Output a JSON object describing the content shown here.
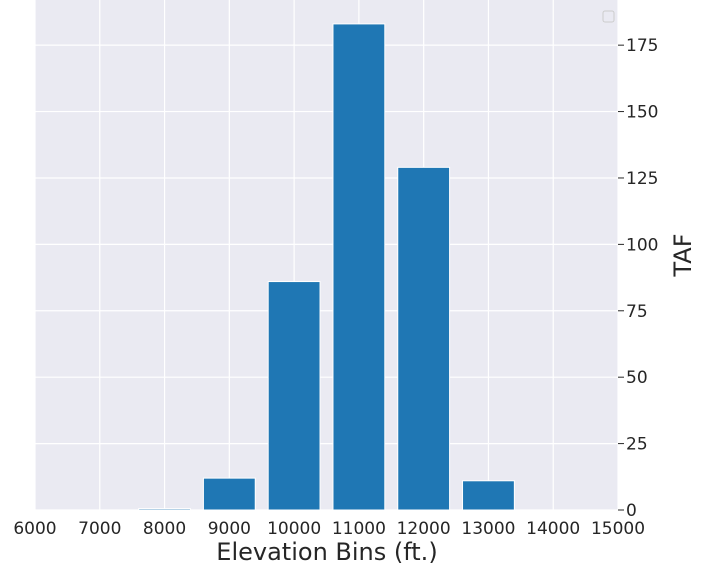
{
  "chart_data": {
    "type": "bar",
    "title": "",
    "xlabel": "Elevation Bins (ft.)",
    "ylabel": "TAF",
    "y_axis_side": "right",
    "grid": true,
    "legend": "top-right",
    "xlim": [
      6000,
      15000
    ],
    "ylim": [
      0,
      192
    ],
    "xticks": [
      6000,
      7000,
      8000,
      9000,
      10000,
      11000,
      12000,
      13000,
      14000,
      15000
    ],
    "yticks": [
      0,
      25,
      50,
      75,
      100,
      125,
      150,
      175
    ],
    "bar_width": 800,
    "x": [
      7000,
      8000,
      9000,
      10000,
      11000,
      12000,
      13000,
      14000
    ],
    "values": [
      0,
      0.5,
      12,
      86,
      183,
      129,
      11,
      0
    ],
    "colors": {
      "bar": "#1f77b4",
      "plot_bg": "#eaeaf2",
      "grid": "#ffffff",
      "text": "#262626"
    }
  }
}
